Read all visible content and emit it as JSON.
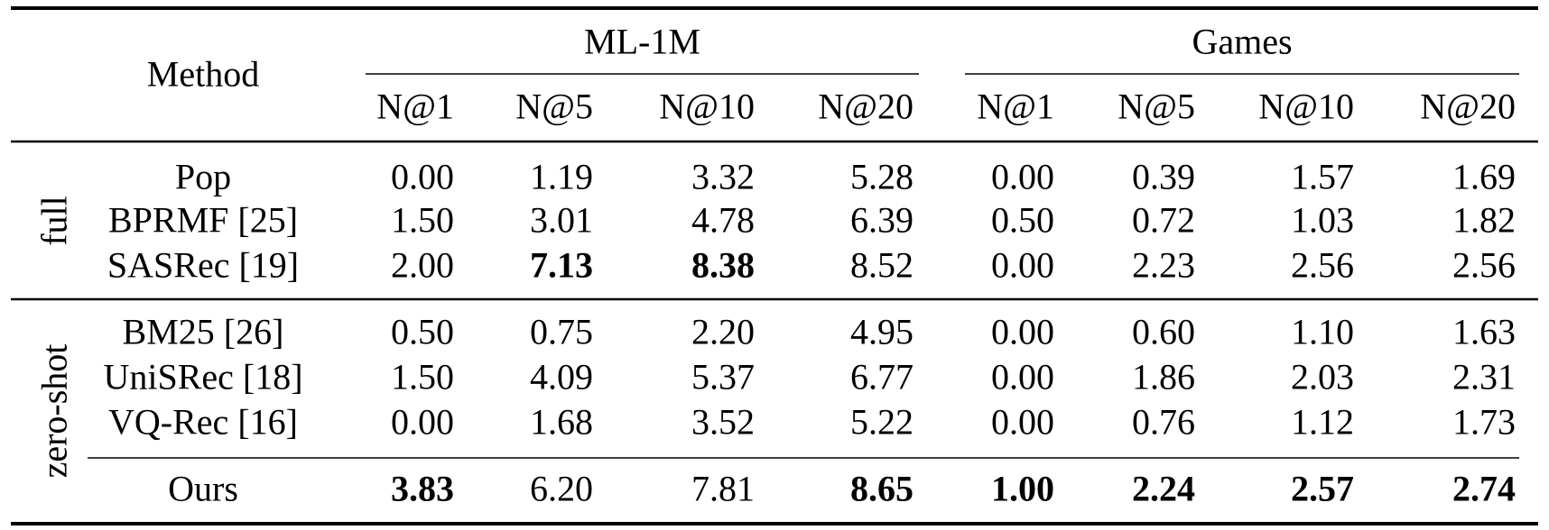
{
  "header": {
    "method": "Method",
    "groups": [
      {
        "name": "ML-1M",
        "metrics": [
          "N@1",
          "N@5",
          "N@10",
          "N@20"
        ]
      },
      {
        "name": "Games",
        "metrics": [
          "N@1",
          "N@5",
          "N@10",
          "N@20"
        ]
      }
    ]
  },
  "sections": [
    {
      "label": "full",
      "rows": [
        {
          "method": "Pop",
          "values": [
            "0.00",
            "1.19",
            "3.32",
            "5.28",
            "0.00",
            "0.39",
            "1.57",
            "1.69"
          ],
          "bold": [
            false,
            false,
            false,
            false,
            false,
            false,
            false,
            false
          ]
        },
        {
          "method": "BPRMF [25]",
          "values": [
            "1.50",
            "3.01",
            "4.78",
            "6.39",
            "0.50",
            "0.72",
            "1.03",
            "1.82"
          ],
          "bold": [
            false,
            false,
            false,
            false,
            false,
            false,
            false,
            false
          ]
        },
        {
          "method": "SASRec [19]",
          "values": [
            "2.00",
            "7.13",
            "8.38",
            "8.52",
            "0.00",
            "2.23",
            "2.56",
            "2.56"
          ],
          "bold": [
            false,
            true,
            true,
            false,
            false,
            false,
            false,
            false
          ]
        }
      ]
    },
    {
      "label": "zero-shot",
      "rows": [
        {
          "method": "BM25 [26]",
          "values": [
            "0.50",
            "0.75",
            "2.20",
            "4.95",
            "0.00",
            "0.60",
            "1.10",
            "1.63"
          ],
          "bold": [
            false,
            false,
            false,
            false,
            false,
            false,
            false,
            false
          ]
        },
        {
          "method": "UniSRec [18]",
          "values": [
            "1.50",
            "4.09",
            "5.37",
            "6.77",
            "0.00",
            "1.86",
            "2.03",
            "2.31"
          ],
          "bold": [
            false,
            false,
            false,
            false,
            false,
            false,
            false,
            false
          ]
        },
        {
          "method": "VQ-Rec [16]",
          "values": [
            "0.00",
            "1.68",
            "3.52",
            "5.22",
            "0.00",
            "0.76",
            "1.12",
            "1.73"
          ],
          "bold": [
            false,
            false,
            false,
            false,
            false,
            false,
            false,
            false
          ]
        },
        {
          "method": "Ours",
          "values": [
            "3.83",
            "6.20",
            "7.81",
            "8.65",
            "1.00",
            "2.24",
            "2.57",
            "2.74"
          ],
          "bold": [
            true,
            false,
            false,
            true,
            true,
            true,
            true,
            true
          ]
        }
      ]
    }
  ]
}
